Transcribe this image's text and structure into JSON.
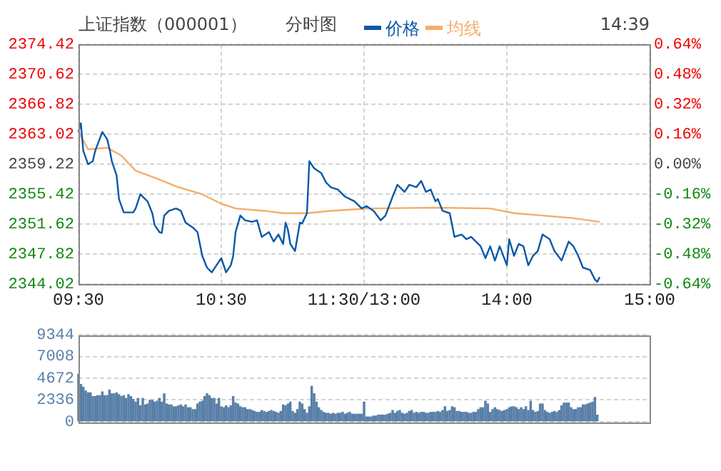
{
  "chart_data": [
    {
      "type": "line",
      "title": "上证指数（000001）",
      "subtitle": "分时图",
      "annotations": [
        "14:39"
      ],
      "legend": "top",
      "grid": true,
      "categories": [
        "09:30",
        null,
        null,
        null,
        null,
        null,
        null,
        null,
        null,
        null,
        null,
        null,
        null,
        null,
        null,
        null,
        null,
        null,
        null,
        null,
        null,
        null,
        null,
        null,
        null,
        null,
        null,
        null,
        null,
        null,
        null,
        null,
        null,
        null,
        null,
        null,
        null,
        null,
        null,
        null,
        null,
        null,
        null,
        null,
        null,
        null,
        null,
        null,
        null,
        null,
        null,
        null,
        null,
        null,
        null,
        null,
        null,
        null,
        null,
        null,
        "10:30",
        null,
        null,
        null,
        null,
        null,
        null,
        null,
        null,
        null,
        null,
        null,
        null,
        null,
        null,
        null,
        null,
        null,
        null,
        null,
        null,
        null,
        null,
        null,
        null,
        null,
        null,
        null,
        null,
        null,
        null,
        null,
        null,
        null,
        null,
        null,
        null,
        null,
        null,
        null,
        null,
        null,
        null,
        null,
        null,
        null,
        null,
        null,
        null,
        null,
        null,
        null,
        null,
        null,
        null,
        null,
        null,
        null,
        null,
        null,
        "11:30/13:00",
        null,
        null,
        null,
        null,
        null,
        null,
        null,
        null,
        null,
        null,
        null,
        null,
        null,
        null,
        null,
        null,
        null,
        null,
        null,
        null,
        null,
        null,
        null,
        null,
        null,
        null,
        null,
        null,
        null,
        null,
        null,
        null,
        null,
        null,
        null,
        null,
        null,
        null,
        null,
        null,
        null,
        null,
        null,
        null,
        null,
        null,
        null,
        null,
        null,
        null,
        null,
        null,
        null,
        null,
        null,
        null,
        null,
        null,
        null,
        "14:00",
        null,
        null,
        null,
        null,
        null,
        null,
        null,
        null,
        null,
        null,
        null,
        null,
        null,
        null,
        null,
        null,
        null,
        null,
        null,
        null,
        null,
        null,
        null,
        null,
        null,
        null,
        null,
        null,
        null,
        null,
        null,
        null,
        null,
        null,
        null,
        null,
        null,
        null,
        null,
        null,
        null,
        null,
        null,
        null,
        null,
        null,
        null,
        null,
        null,
        null,
        null,
        null,
        null,
        null,
        null,
        null,
        null,
        null,
        null,
        "15:00"
      ],
      "ylim": [
        2344.02,
        2374.42
      ],
      "yticks": [
        2344.02,
        2347.82,
        2351.62,
        2355.42,
        2359.22,
        2363.02,
        2366.82,
        2370.62,
        2374.42
      ],
      "y2lim": [
        -0.64,
        0.64
      ],
      "y2ticks": [
        {
          "value": -0.64,
          "label": "-0.64%"
        },
        {
          "value": -0.48,
          "label": "-0.48%"
        },
        {
          "value": -0.32,
          "label": "-0.32%"
        },
        {
          "value": -0.16,
          "label": "-0.16%"
        },
        {
          "value": 0,
          "label": "0.00%"
        },
        {
          "value": 0.16,
          "label": "0.16%"
        },
        {
          "value": 0.32,
          "label": "0.32%"
        },
        {
          "value": 0.48,
          "label": "0.48%"
        },
        {
          "value": 0.64,
          "label": "0.64%"
        }
      ],
      "series": [
        {
          "name": "价格",
          "color": "#0a58a8",
          "values": [
            2363.3,
            2364.4,
            2360.9,
            null,
            2359.2,
            null,
            2359.6,
            2360.9,
            null,
            null,
            2363.3,
            null,
            2362.4,
            2361.2,
            2359.6,
            null,
            2357.8,
            2354.8,
            null,
            2353.1,
            null,
            null,
            null,
            2353.1,
            2353.6,
            null,
            2355.4,
            2355.1,
            null,
            2354.5,
            null,
            2353.0,
            2351.5,
            null,
            2350.6,
            2350.5,
            2352.7,
            null,
            2353.3,
            null,
            null,
            2353.6,
            null,
            2353.3,
            null,
            2351.8,
            null,
            null,
            2351.2,
            null,
            2350.6,
            null,
            2347.6,
            null,
            2346.1,
            null,
            2345.5,
            null,
            2346.4,
            null,
            2347.3,
            null,
            2345.5,
            null,
            2346.4,
            2347.6,
            2350.6,
            null,
            2352.7,
            null,
            2352.1,
            null,
            null,
            2351.9,
            null,
            2352.1,
            null,
            2350.0,
            null,
            null,
            2350.6,
            null,
            2349.4,
            null,
            2350.3,
            null,
            2349.1,
            2351.8,
            2350.9,
            2349.1,
            null,
            2348.2,
            null,
            2351.8,
            2351.7,
            null,
            2353.0,
            2359.6,
            null,
            2358.7,
            null,
            null,
            2358.1,
            null,
            2356.9,
            null,
            2356.3,
            null,
            null,
            2356.0,
            null,
            null,
            2355.1,
            null,
            2354.8,
            null,
            2354.5,
            null,
            null,
            2353.6,
            null,
            2353.9,
            null,
            null,
            2353.3,
            null,
            null,
            2352.1,
            null,
            2352.7,
            null,
            null,
            2355.1,
            null,
            2356.6,
            null,
            null,
            2355.7,
            null,
            2356.6,
            null,
            null,
            2356.3,
            null,
            2357.1,
            null,
            2355.7,
            null,
            2356.0,
            null,
            2354.5,
            2354.8,
            null,
            2353.3,
            null,
            null,
            2353.0,
            null,
            2350.0,
            null,
            null,
            2350.3,
            null,
            2349.7,
            null,
            2350.0,
            null,
            null,
            null,
            2348.8,
            null,
            2347.3,
            null,
            2348.8,
            null,
            2347.0,
            null,
            2348.8,
            null,
            null,
            2346.4,
            2349.7,
            null,
            2347.6,
            null,
            2349.1,
            null,
            2348.8,
            null,
            2346.4,
            null,
            2347.6,
            null,
            2348.2,
            null,
            2350.3,
            null,
            null,
            2349.7,
            null,
            2348.2,
            null,
            null,
            2347.0,
            null,
            null,
            2349.4,
            null,
            2348.8,
            null,
            2347.6,
            null,
            2346.1,
            null,
            null,
            2345.8,
            null,
            2344.6,
            2344.3,
            2344.9,
            null,
            null,
            null,
            null,
            null,
            null,
            null,
            null,
            null,
            null,
            null,
            null,
            null,
            null,
            null,
            null,
            null,
            null,
            null,
            null,
            null
          ]
        },
        {
          "name": "均线",
          "color": "#f5ad6b",
          "values": [
            2363.3,
            null,
            null,
            null,
            2361.1,
            null,
            null,
            null,
            null,
            null,
            null,
            null,
            2361.3,
            null,
            null,
            null,
            null,
            null,
            2360.3,
            null,
            null,
            null,
            null,
            null,
            2358.4,
            null,
            null,
            null,
            null,
            null,
            null,
            null,
            2357.5,
            null,
            null,
            null,
            null,
            null,
            null,
            null,
            null,
            null,
            2356.3,
            null,
            null,
            null,
            null,
            null,
            null,
            null,
            null,
            null,
            2355.4,
            null,
            null,
            null,
            null,
            null,
            null,
            null,
            2354.2,
            null,
            null,
            null,
            null,
            null,
            2353.6,
            null,
            null,
            null,
            null,
            null,
            null,
            null,
            null,
            null,
            null,
            null,
            2353.3,
            null,
            null,
            null,
            null,
            null,
            null,
            null,
            2353.0,
            null,
            null,
            null,
            null,
            null,
            null,
            null,
            null,
            null,
            2353.0,
            null,
            null,
            null,
            null,
            null,
            null,
            null,
            null,
            null,
            2353.3,
            null,
            null,
            null,
            null,
            null,
            null,
            null,
            null,
            null,
            null,
            null,
            null,
            null,
            null,
            null,
            2353.6,
            null,
            null,
            null,
            null,
            null,
            null,
            null,
            null,
            null,
            null,
            null,
            null,
            null,
            null,
            null,
            null,
            null,
            null,
            null,
            null,
            null,
            null,
            null,
            null,
            null,
            null,
            null,
            2353.7,
            null,
            null,
            null,
            null,
            null,
            null,
            null,
            null,
            null,
            null,
            null,
            null,
            null,
            null,
            null,
            null,
            null,
            null,
            null,
            null,
            null,
            null,
            2353.6,
            null,
            null,
            null,
            null,
            null,
            null,
            null,
            null,
            null,
            2353.0,
            null,
            null,
            null,
            null,
            null,
            null,
            null,
            null,
            null,
            null,
            null,
            null,
            null,
            null,
            null,
            null,
            null,
            null,
            null,
            null,
            null,
            null,
            null,
            2352.4,
            null,
            null,
            null,
            null,
            null,
            null,
            null,
            null,
            null,
            null,
            null,
            2351.9,
            null,
            null,
            null,
            null,
            null,
            null,
            null,
            null,
            null,
            null,
            null,
            null,
            null,
            null,
            null,
            null,
            null,
            null,
            null,
            null,
            null
          ]
        }
      ]
    },
    {
      "type": "bar",
      "color": "#5a80a8",
      "grid": "y",
      "tick_labels": "y",
      "categories": [
        null,
        null,
        null,
        null,
        null,
        null,
        null,
        null,
        null,
        null,
        null,
        null,
        null,
        null,
        null,
        null,
        null,
        null,
        null,
        null,
        null,
        null,
        null,
        null,
        null,
        null,
        null,
        null,
        null,
        null,
        null,
        null,
        null,
        null,
        null,
        null,
        null,
        null,
        null,
        null,
        null,
        null,
        null,
        null,
        null,
        null,
        null,
        null,
        null,
        null,
        null,
        null,
        null,
        null,
        null,
        null,
        null,
        null,
        null,
        null,
        null,
        null,
        null,
        null,
        null,
        null,
        null,
        null,
        null,
        null,
        null,
        null,
        null,
        null,
        null,
        null,
        null,
        null,
        null,
        null,
        null,
        null,
        null,
        null,
        null,
        null,
        null,
        null,
        null,
        null,
        null,
        null,
        null,
        null,
        null,
        null,
        null,
        null,
        null,
        null,
        null,
        null,
        null,
        null,
        null,
        null,
        null,
        null,
        null,
        null,
        null,
        null,
        null,
        null,
        null,
        null,
        null,
        null,
        null,
        null,
        null,
        null,
        null,
        null,
        null,
        null,
        null,
        null,
        null,
        null,
        null,
        null,
        null,
        null,
        null,
        null,
        null,
        null,
        null,
        null,
        null,
        null,
        null,
        null,
        null,
        null,
        null,
        null,
        null,
        null,
        null,
        null,
        null,
        null,
        null,
        null,
        null,
        null,
        null,
        null,
        null,
        null,
        null,
        null,
        null,
        null,
        null,
        null,
        null,
        null,
        null,
        null,
        null,
        null,
        null,
        null,
        null,
        null,
        null,
        null,
        null,
        null,
        null,
        null,
        null,
        null,
        null,
        null,
        null,
        null,
        null,
        null,
        null,
        null,
        null,
        null,
        null,
        null,
        null,
        null,
        null,
        null,
        null,
        null,
        null,
        null,
        null,
        null,
        null,
        null,
        null,
        null,
        null,
        null,
        null,
        null,
        null,
        null,
        null,
        null,
        null,
        null,
        null,
        null,
        null,
        null,
        null,
        null,
        null,
        null,
        null,
        null,
        null,
        null,
        null,
        null,
        null,
        null,
        null,
        null,
        null
      ],
      "ylim": [
        0,
        9344
      ],
      "yticks": [
        0,
        2336,
        4672,
        7008,
        9344
      ],
      "values": [
        5100,
        4000,
        3700,
        3300,
        3100,
        3100,
        2700,
        2700,
        2800,
        2800,
        3200,
        2800,
        2800,
        3400,
        3000,
        3000,
        3100,
        2900,
        2700,
        2800,
        2500,
        2900,
        2700,
        2400,
        2100,
        2500,
        1700,
        2500,
        1800,
        1900,
        2300,
        2300,
        2100,
        2200,
        2500,
        2100,
        3000,
        1900,
        1800,
        1800,
        1600,
        1600,
        1700,
        1800,
        1600,
        1800,
        1500,
        1500,
        1300,
        1300,
        1900,
        2100,
        2200,
        2700,
        3000,
        2800,
        2500,
        2500,
        1900,
        2500,
        1600,
        1500,
        1700,
        1500,
        1700,
        2700,
        2000,
        1900,
        1600,
        1500,
        1500,
        1300,
        1300,
        1200,
        1100,
        1000,
        1000,
        1200,
        1100,
        1000,
        1100,
        1200,
        1100,
        1000,
        900,
        1100,
        1800,
        1700,
        1900,
        2100,
        1100,
        900,
        1300,
        2100,
        1900,
        1300,
        900,
        1600,
        3800,
        3000,
        2100,
        1500,
        1200,
        1000,
        900,
        900,
        800,
        900,
        800,
        900,
        900,
        1000,
        800,
        900,
        1000,
        800,
        800,
        800,
        800,
        800,
        2100,
        500,
        500,
        500,
        600,
        600,
        700,
        700,
        700,
        700,
        800,
        900,
        1200,
        900,
        1100,
        1200,
        900,
        800,
        900,
        1100,
        1200,
        900,
        1000,
        900,
        1000,
        1000,
        900,
        900,
        1000,
        1000,
        1000,
        1100,
        1000,
        1200,
        1600,
        1100,
        1200,
        1600,
        1500,
        1100,
        1100,
        1000,
        1000,
        1000,
        900,
        900,
        1000,
        1000,
        1300,
        1500,
        1500,
        2200,
        1900,
        1000,
        1300,
        1500,
        1300,
        1200,
        1100,
        1200,
        1300,
        1500,
        1600,
        1600,
        1500,
        1300,
        1500,
        1300,
        1600,
        1200,
        2200,
        1200,
        1000,
        1100,
        1900,
        1900,
        1200,
        1000,
        900,
        1000,
        1100,
        1000,
        1200,
        1700,
        2000,
        2000,
        2000,
        1500,
        1300,
        1300,
        1500,
        1500,
        1800,
        1800,
        1900,
        2000,
        2100,
        2600,
        700,
        null,
        null,
        null,
        null,
        null,
        null,
        null,
        null,
        null,
        null,
        null,
        null,
        null,
        null,
        null,
        null,
        null,
        null,
        null,
        null,
        null,
        null
      ]
    }
  ]
}
